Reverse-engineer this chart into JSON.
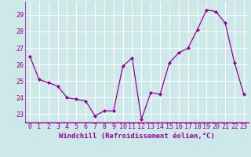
{
  "x": [
    0,
    1,
    2,
    3,
    4,
    5,
    6,
    7,
    8,
    9,
    10,
    11,
    12,
    13,
    14,
    15,
    16,
    17,
    18,
    19,
    20,
    21,
    22,
    23
  ],
  "y": [
    26.5,
    25.1,
    24.9,
    24.7,
    24.0,
    23.9,
    23.8,
    22.9,
    23.2,
    23.2,
    25.9,
    26.4,
    22.7,
    24.3,
    24.2,
    26.1,
    26.7,
    27.0,
    28.1,
    29.3,
    29.2,
    28.5,
    26.1,
    24.2
  ],
  "line_color": "#990099",
  "marker": "D",
  "markersize": 2.0,
  "linewidth": 0.9,
  "bg_color": "#cce8e8",
  "grid_color": "#b0d4d4",
  "xlabel": "Windchill (Refroidissement éolien,°C)",
  "xlabel_fontsize": 6.5,
  "tick_fontsize": 6,
  "ylim": [
    22.5,
    29.8
  ],
  "yticks": [
    23,
    24,
    25,
    26,
    27,
    28,
    29
  ],
  "xticks": [
    0,
    1,
    2,
    3,
    4,
    5,
    6,
    7,
    8,
    9,
    10,
    11,
    12,
    13,
    14,
    15,
    16,
    17,
    18,
    19,
    20,
    21,
    22,
    23
  ],
  "xlim": [
    -0.5,
    23.5
  ]
}
